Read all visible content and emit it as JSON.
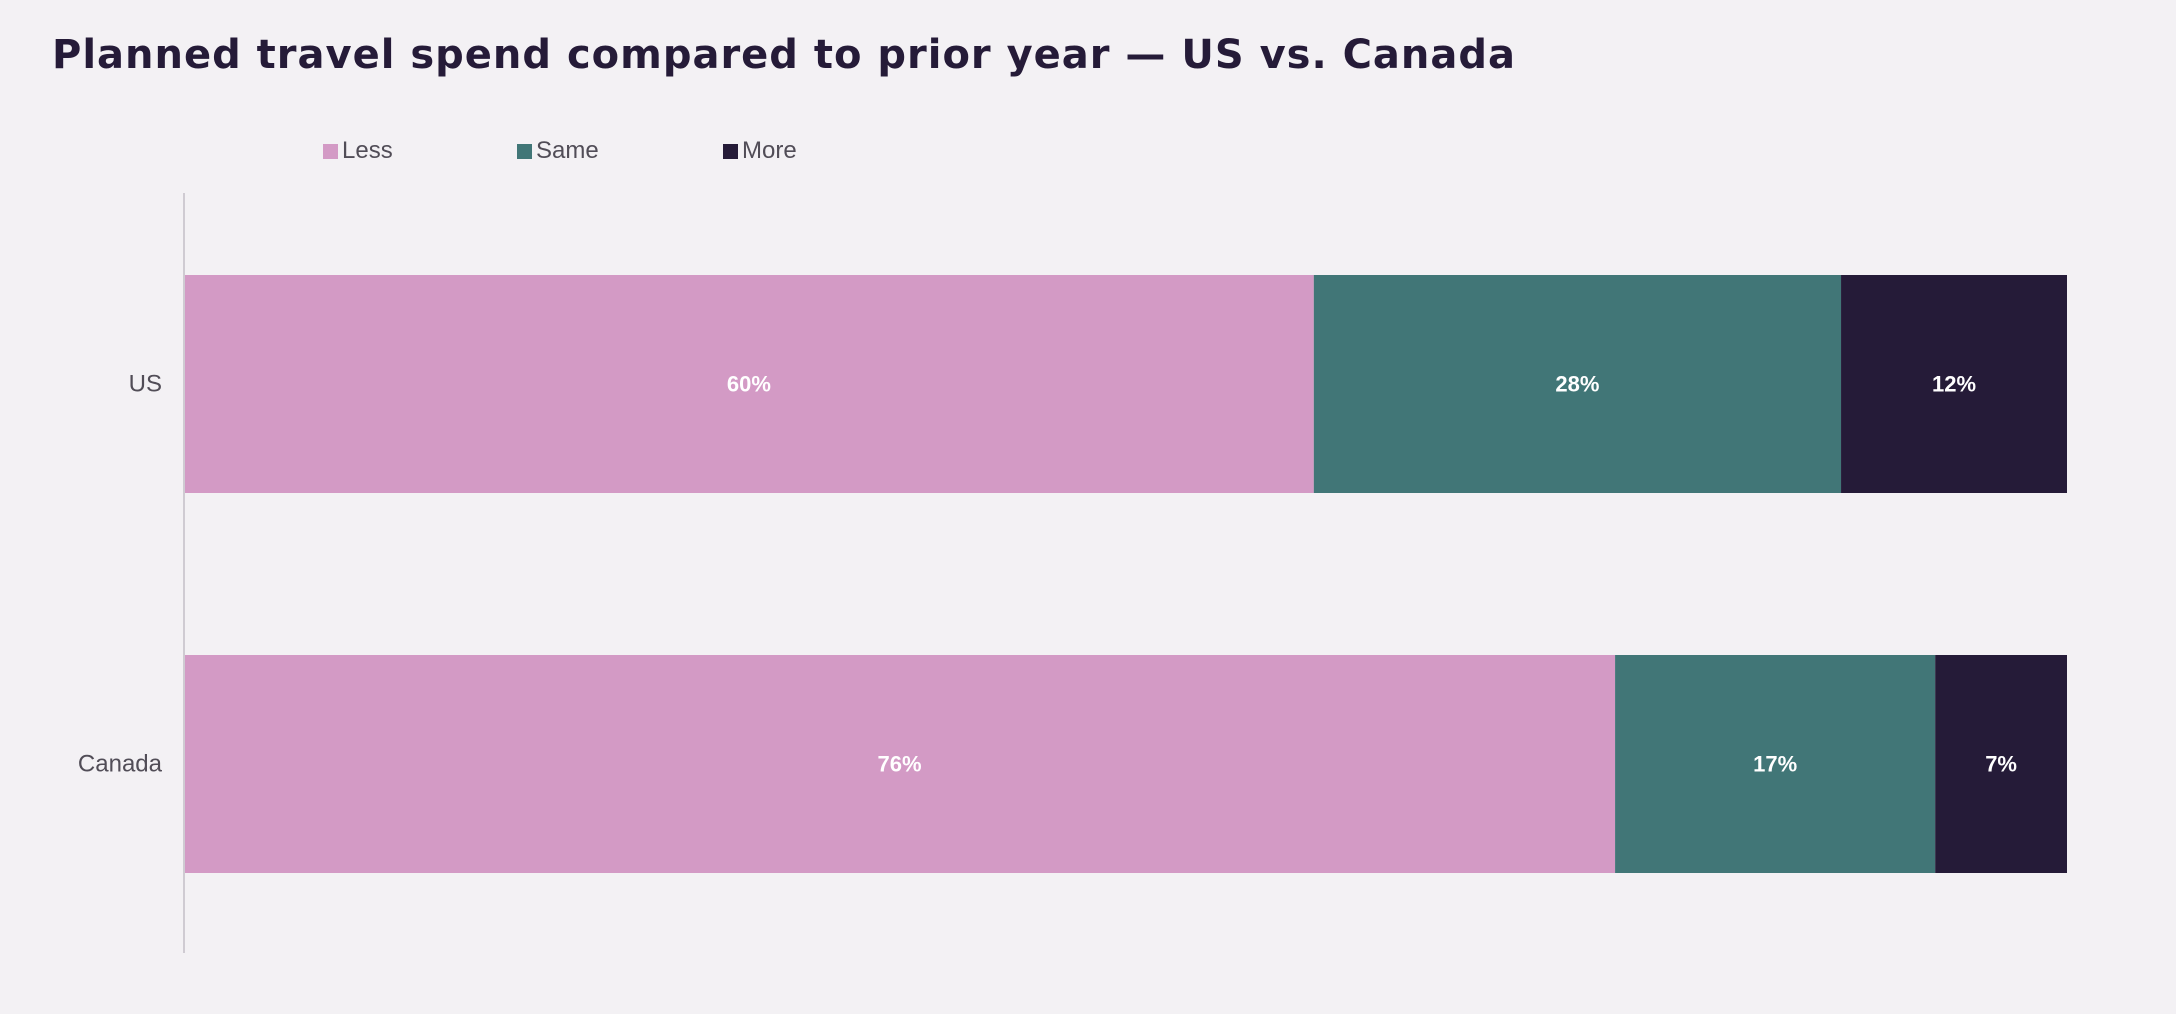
{
  "chart_data": {
    "type": "bar",
    "orientation": "horizontal",
    "stacked": true,
    "title": "Planned travel spend compared to prior year — US vs. Canada",
    "categories": [
      "US",
      "Canada"
    ],
    "series": [
      {
        "name": "Less",
        "color": "#d39ac5",
        "values": [
          60,
          76
        ],
        "labels": [
          "60%",
          "76%"
        ]
      },
      {
        "name": "Same",
        "color": "#417677",
        "values": [
          28,
          17
        ],
        "labels": [
          "28%",
          "17%"
        ]
      },
      {
        "name": "More",
        "color": "#251b38",
        "values": [
          12,
          7
        ],
        "labels": [
          "12%",
          "7%"
        ]
      }
    ],
    "xlim": [
      0,
      100
    ],
    "legend_position": "top-left",
    "grid": false
  }
}
